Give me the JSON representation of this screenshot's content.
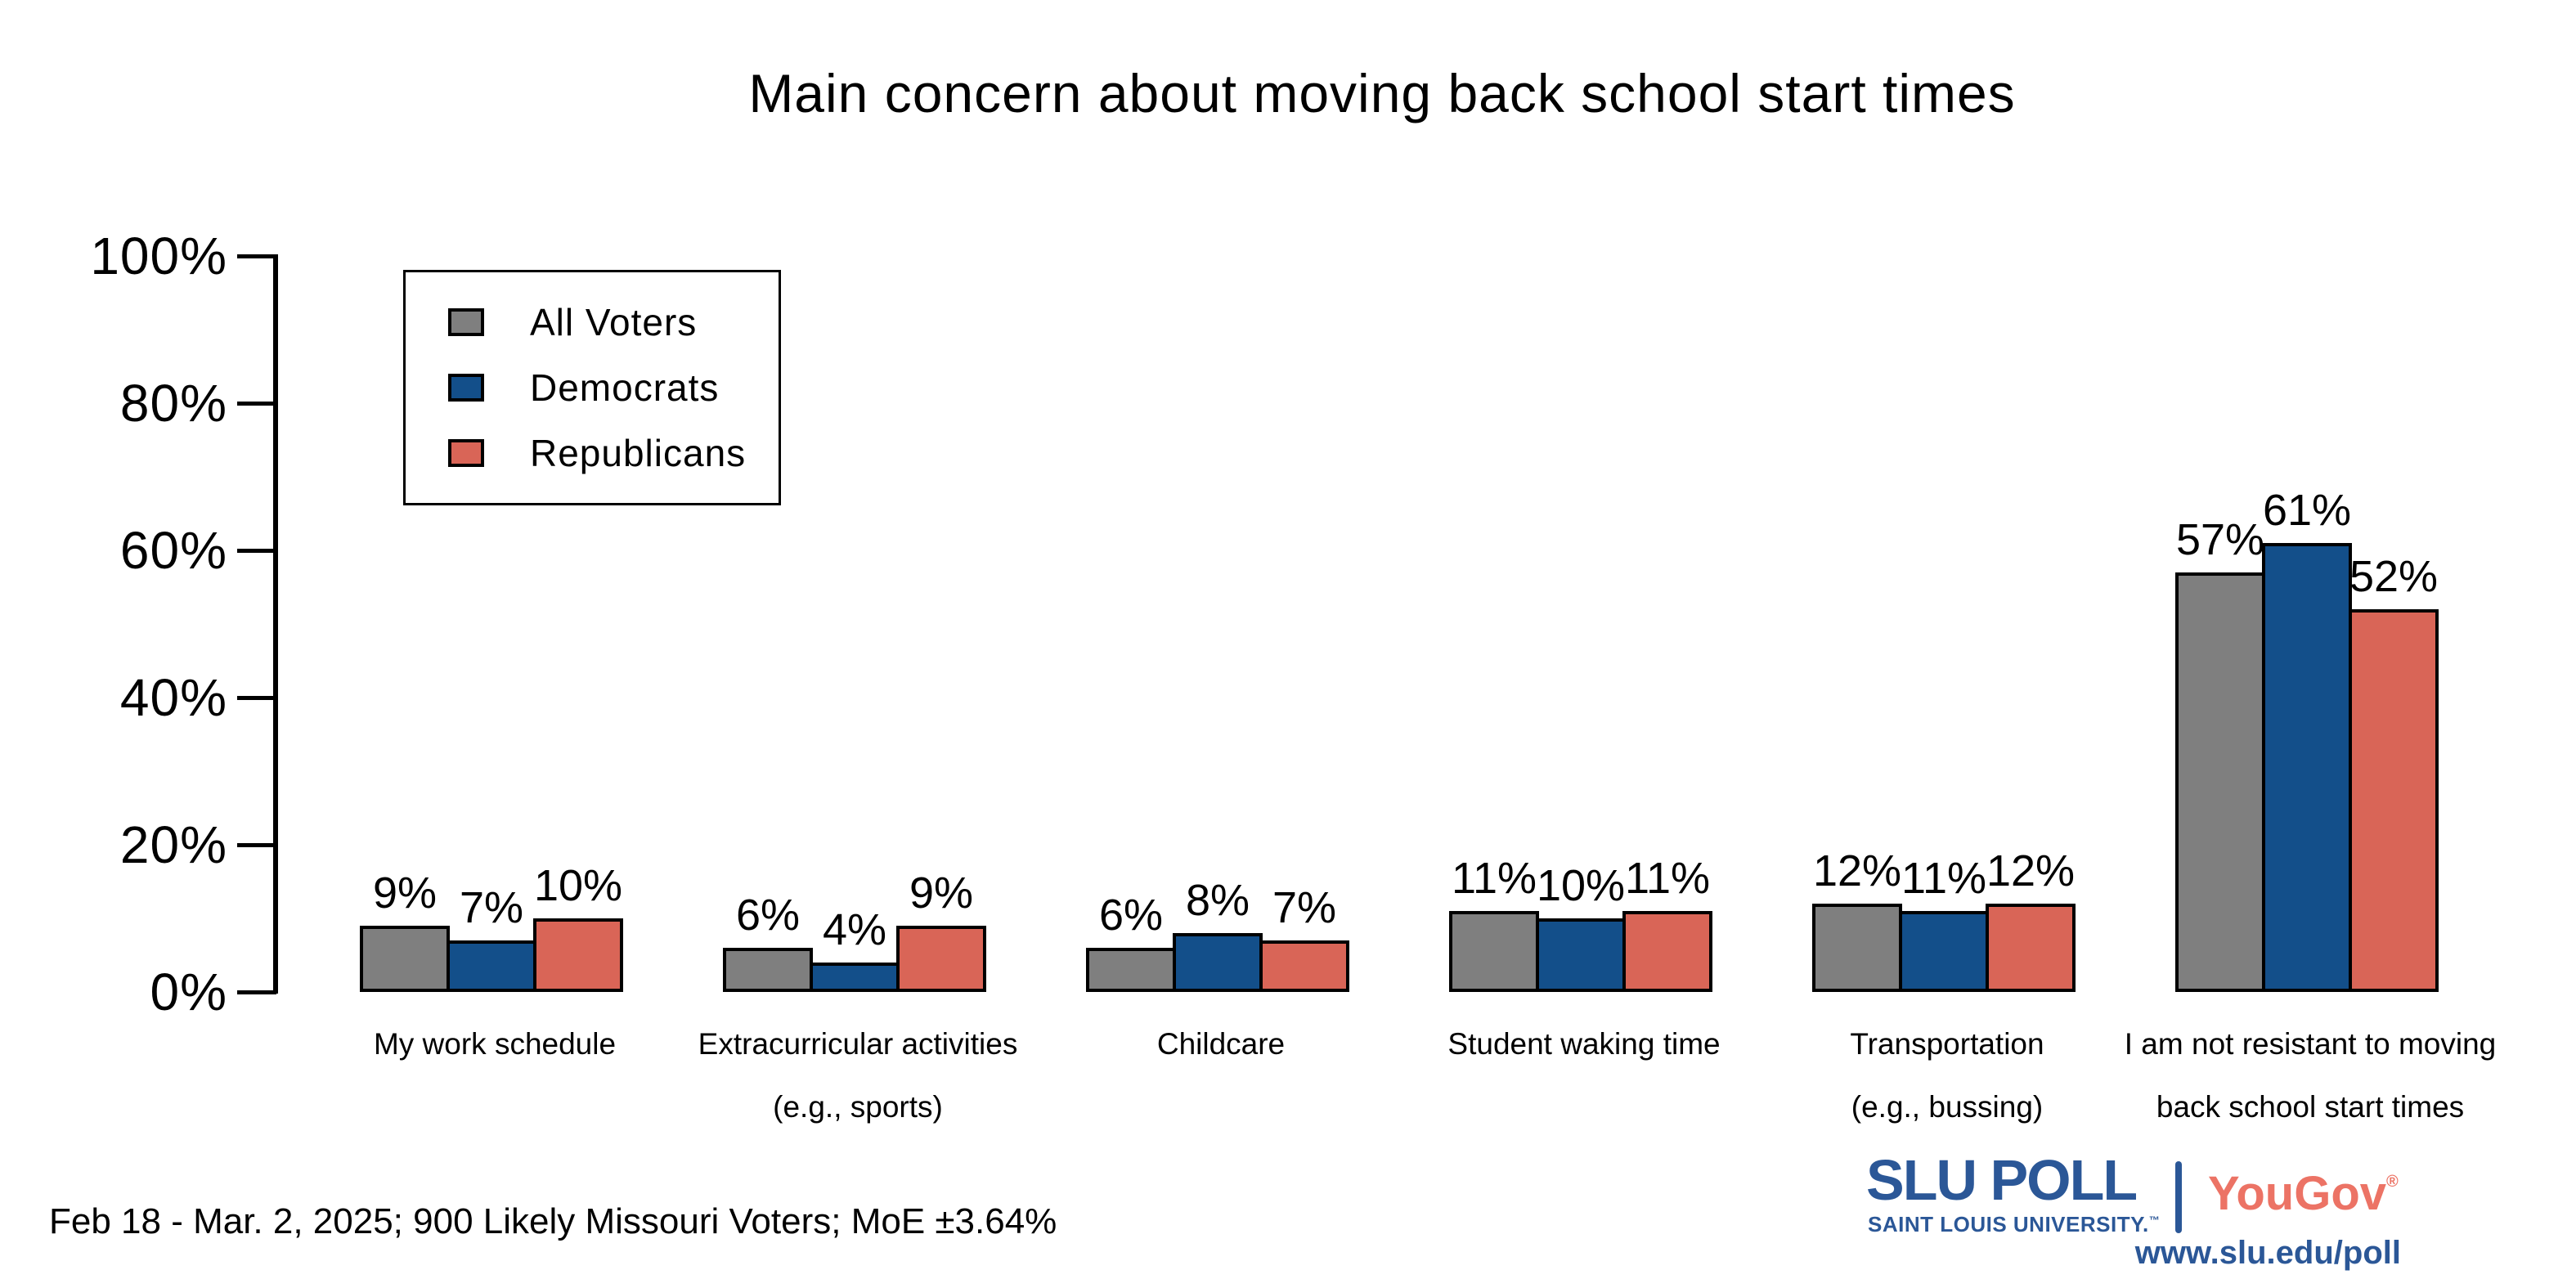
{
  "title": "Main concern about moving back school start times",
  "y_axis": {
    "ticks": [
      0,
      20,
      40,
      60,
      80,
      100
    ],
    "tick_labels": [
      "0%",
      "20%",
      "40%",
      "60%",
      "80%",
      "100%"
    ]
  },
  "chart_data": {
    "type": "bar",
    "title": "Main concern about moving back school start times",
    "categories": [
      "My work schedule",
      "Extracurricular activities (e.g., sports)",
      "Childcare",
      "Student waking time",
      "Transportation (e.g., bussing)",
      "I am not resistant to moving back school start times"
    ],
    "category_lines": [
      [
        "My work schedule",
        ""
      ],
      [
        "Extracurricular activities",
        "(e.g., sports)"
      ],
      [
        "Childcare",
        ""
      ],
      [
        "Student waking time",
        ""
      ],
      [
        "Transportation",
        "(e.g., bussing)"
      ],
      [
        "I am not resistant to moving",
        "back school start times"
      ]
    ],
    "series": [
      {
        "name": "All Voters",
        "color": "#7f7f7f",
        "values": [
          9,
          6,
          6,
          11,
          12,
          57
        ]
      },
      {
        "name": "Democrats",
        "color": "#134f8a",
        "values": [
          7,
          4,
          8,
          10,
          11,
          61
        ]
      },
      {
        "name": "Republicans",
        "color": "#d96557",
        "values": [
          10,
          9,
          7,
          11,
          12,
          52
        ]
      }
    ],
    "value_label_format": "{v}%",
    "ylabel": "",
    "xlabel": "",
    "ylim": [
      0,
      100
    ],
    "grid": false,
    "legend_position": "upper-left",
    "bar_outline_color": "#000000"
  },
  "footer": {
    "note": "Feb 18 - Mar. 2, 2025; 900 Likely Missouri Voters; MoE ±3.64%"
  },
  "branding": {
    "slu_poll": "SLU POLL",
    "slu_sub": "SAINT LOUIS UNIVERSITY.",
    "slu_tm": "™",
    "yougov": "YouGov",
    "yougov_reg": "®",
    "url": "www.slu.edu/poll",
    "slu_blue": "#2b5797",
    "yougov_red": "#ec7365"
  }
}
